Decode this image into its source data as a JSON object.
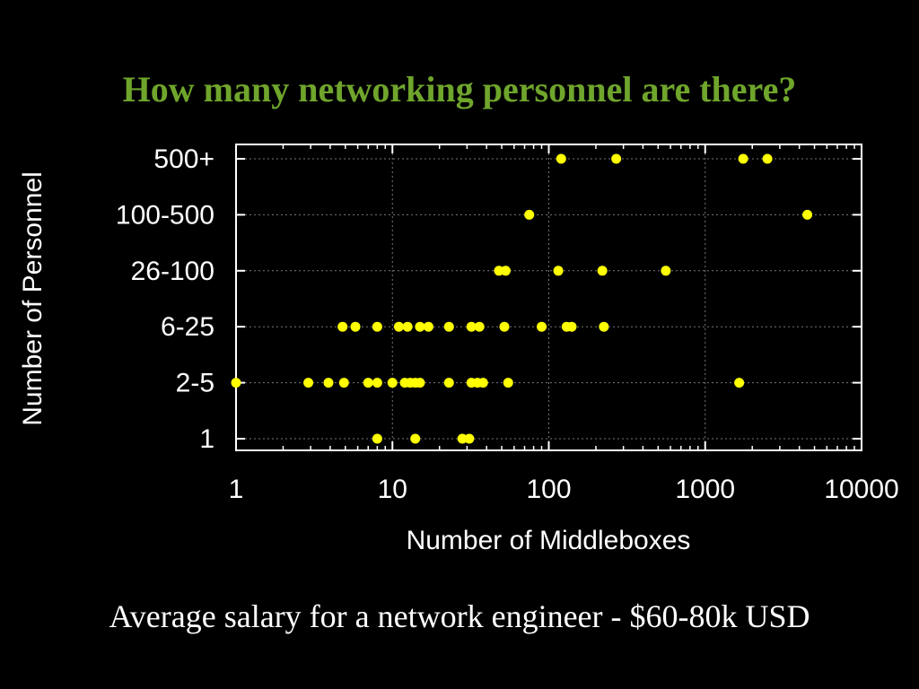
{
  "slide": {
    "title": "How many networking personnel are there?",
    "caption": "Average salary for a network engineer - $60-80k USD"
  },
  "colors": {
    "background": "#000000",
    "title": "#6fa52c",
    "point": "#ffff00",
    "axis": "#ffffff",
    "grid": "#777777"
  },
  "chart_data": {
    "type": "scatter",
    "xlabel": "Number of Middleboxes",
    "ylabel": "Number of Personnel",
    "xscale": "log",
    "xlim": [
      1,
      10000
    ],
    "x_ticks": [
      "1",
      "10",
      "100",
      "1000",
      "10000"
    ],
    "y_categories": [
      "1",
      "2-5",
      "6-25",
      "26-100",
      "100-500",
      "500+"
    ],
    "grid": true,
    "points": [
      {
        "x": 120,
        "y": "500+"
      },
      {
        "x": 270,
        "y": "500+"
      },
      {
        "x": 1750,
        "y": "500+"
      },
      {
        "x": 2500,
        "y": "500+"
      },
      {
        "x": 75,
        "y": "100-500"
      },
      {
        "x": 4500,
        "y": "100-500"
      },
      {
        "x": 48,
        "y": "26-100"
      },
      {
        "x": 53,
        "y": "26-100"
      },
      {
        "x": 115,
        "y": "26-100"
      },
      {
        "x": 220,
        "y": "26-100"
      },
      {
        "x": 560,
        "y": "26-100"
      },
      {
        "x": 4.8,
        "y": "6-25"
      },
      {
        "x": 5.8,
        "y": "6-25"
      },
      {
        "x": 8,
        "y": "6-25"
      },
      {
        "x": 11,
        "y": "6-25"
      },
      {
        "x": 12.5,
        "y": "6-25"
      },
      {
        "x": 15,
        "y": "6-25"
      },
      {
        "x": 17,
        "y": "6-25"
      },
      {
        "x": 23,
        "y": "6-25"
      },
      {
        "x": 32,
        "y": "6-25"
      },
      {
        "x": 36,
        "y": "6-25"
      },
      {
        "x": 52,
        "y": "6-25"
      },
      {
        "x": 90,
        "y": "6-25"
      },
      {
        "x": 130,
        "y": "6-25"
      },
      {
        "x": 140,
        "y": "6-25"
      },
      {
        "x": 225,
        "y": "6-25"
      },
      {
        "x": 1,
        "y": "2-5"
      },
      {
        "x": 2.9,
        "y": "2-5"
      },
      {
        "x": 3.9,
        "y": "2-5"
      },
      {
        "x": 4.9,
        "y": "2-5"
      },
      {
        "x": 7,
        "y": "2-5"
      },
      {
        "x": 8,
        "y": "2-5"
      },
      {
        "x": 10,
        "y": "2-5"
      },
      {
        "x": 12,
        "y": "2-5"
      },
      {
        "x": 13,
        "y": "2-5"
      },
      {
        "x": 14,
        "y": "2-5"
      },
      {
        "x": 15,
        "y": "2-5"
      },
      {
        "x": 23,
        "y": "2-5"
      },
      {
        "x": 32,
        "y": "2-5"
      },
      {
        "x": 35,
        "y": "2-5"
      },
      {
        "x": 38,
        "y": "2-5"
      },
      {
        "x": 55,
        "y": "2-5"
      },
      {
        "x": 1650,
        "y": "2-5"
      },
      {
        "x": 8,
        "y": "1"
      },
      {
        "x": 14,
        "y": "1"
      },
      {
        "x": 28,
        "y": "1"
      },
      {
        "x": 31,
        "y": "1"
      }
    ]
  }
}
